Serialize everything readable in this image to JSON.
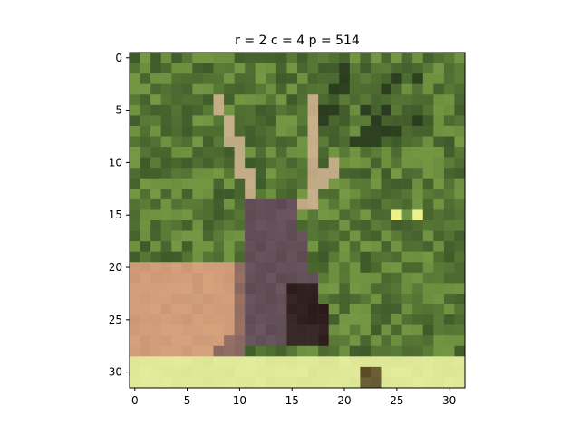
{
  "figure": {
    "title": "r = 2   c = 4   p = 514",
    "image_grid": {
      "rows": 32,
      "cols": 32
    },
    "x_ticks": [
      {
        "value": 0,
        "label": "0"
      },
      {
        "value": 5,
        "label": "5"
      },
      {
        "value": 10,
        "label": "10"
      },
      {
        "value": 15,
        "label": "15"
      },
      {
        "value": 20,
        "label": "20"
      },
      {
        "value": 25,
        "label": "25"
      },
      {
        "value": 30,
        "label": "30"
      }
    ],
    "y_ticks": [
      {
        "value": 0,
        "label": "0"
      },
      {
        "value": 5,
        "label": "5"
      },
      {
        "value": 10,
        "label": "10"
      },
      {
        "value": 15,
        "label": "15"
      },
      {
        "value": 20,
        "label": "20"
      },
      {
        "value": 25,
        "label": "25"
      },
      {
        "value": 30,
        "label": "30"
      }
    ],
    "palette": {
      "foliage_dark": "#3f5a2a",
      "foliage_mid": "#6b8f3e",
      "foliage_light": "#8cab52",
      "shadow": "#1e2a18",
      "antler": "#c7b08a",
      "deer_body": "#6a5560",
      "deer_neck": "#4a3a3a",
      "deer_snout": "#2a1a1a",
      "back": "#d6a27e",
      "back_shade": "#b88565",
      "grass_light": "#e2ec9c",
      "grass_mid": "#d7df8c",
      "eye_yellow": "#eef08a"
    }
  }
}
